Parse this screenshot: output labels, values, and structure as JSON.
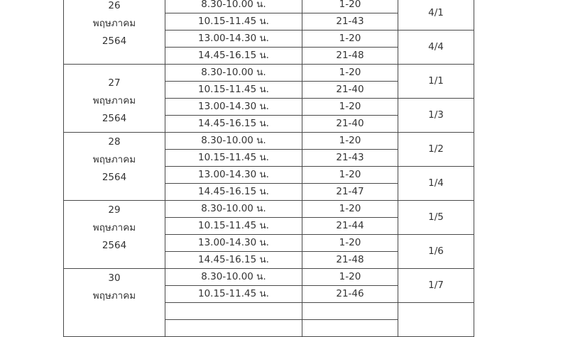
{
  "groups": [
    {
      "day": "26",
      "month": "พฤษภาคม",
      "year": "2564",
      "align": "top",
      "slots": [
        {
          "time": "8.30-10.00 น.",
          "range": "1-20"
        },
        {
          "time": "10.15-11.45 น.",
          "range": "21-43"
        },
        {
          "time": "13.00-14.30 น.",
          "range": "1-20"
        },
        {
          "time": "14.45-16.15 น.",
          "range": "21-48"
        }
      ],
      "classes": [
        "4/1",
        "4/4"
      ]
    },
    {
      "day": "27",
      "month": "พฤษภาคม",
      "year": "2564",
      "align": "mid",
      "slots": [
        {
          "time": "8.30-10.00 น.",
          "range": "1-20"
        },
        {
          "time": "10.15-11.45 น.",
          "range": "21-40"
        },
        {
          "time": "13.00-14.30 น.",
          "range": "1-20"
        },
        {
          "time": "14.45-16.15 น.",
          "range": "21-40"
        }
      ],
      "classes": [
        "1/1",
        "1/3"
      ]
    },
    {
      "day": "28",
      "month": "พฤษภาคม",
      "year": "2564",
      "align": "top",
      "slots": [
        {
          "time": "8.30-10.00 น.",
          "range": "1-20"
        },
        {
          "time": "10.15-11.45 น.",
          "range": "21-43"
        },
        {
          "time": "13.00-14.30 น.",
          "range": "1-20"
        },
        {
          "time": "14.45-16.15 น.",
          "range": "21-47"
        }
      ],
      "classes": [
        "1/2",
        "1/4"
      ]
    },
    {
      "day": "29",
      "month": "พฤษภาคม",
      "year": "2564",
      "align": "top",
      "slots": [
        {
          "time": "8.30-10.00 น.",
          "range": "1-20"
        },
        {
          "time": "10.15-11.45 น.",
          "range": "21-44"
        },
        {
          "time": "13.00-14.30 น.",
          "range": "1-20"
        },
        {
          "time": "14.45-16.15 น.",
          "range": "21-48"
        }
      ],
      "classes": [
        "1/5",
        "1/6"
      ]
    },
    {
      "day": "30",
      "month": "พฤษภาคม",
      "align": "top",
      "slots": [
        {
          "time": "8.30-10.00 น.",
          "range": "1-20"
        },
        {
          "time": "10.15-11.45 น.",
          "range": "21-46"
        },
        {
          "time": "",
          "range": ""
        },
        {
          "time": "",
          "range": ""
        }
      ],
      "classes": [
        "1/7",
        ""
      ]
    }
  ]
}
